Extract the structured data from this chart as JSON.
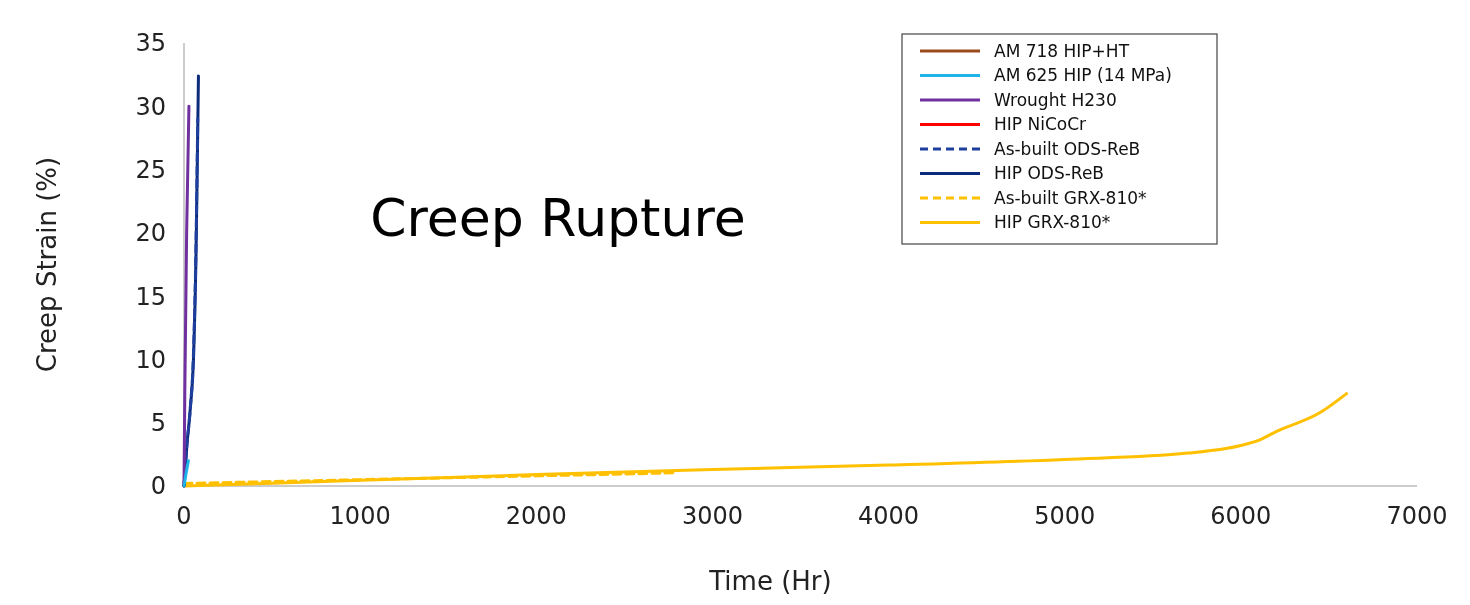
{
  "chart_data": {
    "type": "line",
    "title": "Creep Rupture",
    "xlabel": "Time (Hr)",
    "ylabel": "Creep Strain (%)",
    "xlim": [
      0,
      7000
    ],
    "ylim": [
      0,
      35
    ],
    "xticks": [
      0,
      1000,
      2000,
      3000,
      4000,
      5000,
      6000,
      7000
    ],
    "yticks": [
      0,
      5,
      10,
      15,
      20,
      25,
      30,
      35
    ],
    "grid": false,
    "legend": "top right",
    "marker": "none",
    "series": [
      {
        "name": "AM 718 HIP+HT",
        "color": "#9c4a1a",
        "values": [
          null
        ]
      },
      {
        "name": "AM 625 HIP (14 MPa)",
        "color": "#1fb4e8",
        "x": [
          0,
          12,
          25
        ],
        "values": [
          0,
          1,
          2
        ]
      },
      {
        "name": "Wrought H230",
        "color": "#7030a0",
        "x": [
          0,
          5,
          15,
          28
        ],
        "values": [
          0,
          8,
          20,
          30
        ]
      },
      {
        "name": "HIP NiCoCr",
        "color": "#ff0000",
        "values": [
          null
        ]
      },
      {
        "name": "As-built ODS-ReB",
        "color": "#1f3f9f",
        "line_style": "dashed",
        "x": [
          0,
          15,
          35,
          55,
          68,
          78
        ],
        "values": [
          0,
          3,
          6,
          11,
          19,
          29
        ]
      },
      {
        "name": "HIP ODS-ReB",
        "color": "#0c2a7a",
        "x": [
          0,
          17,
          35,
          55,
          68,
          76,
          82
        ],
        "values": [
          0,
          3.3,
          6,
          10.5,
          18,
          26,
          32.4
        ]
      },
      {
        "name": "As-built GRX-810*",
        "color": "#ffc000",
        "line_style": "dashed",
        "x": [
          0,
          500,
          1000,
          1500,
          2000,
          2500,
          2800
        ],
        "values": [
          0.2,
          0.35,
          0.5,
          0.65,
          0.8,
          0.95,
          1.05
        ]
      },
      {
        "name": "HIP GRX-810*",
        "color": "#ffc000",
        "x": [
          0,
          1000,
          2000,
          3000,
          4000,
          5000,
          5700,
          6000,
          6100,
          6200,
          6450,
          6600
        ],
        "values": [
          0,
          0.45,
          0.9,
          1.3,
          1.65,
          2.1,
          2.6,
          3.2,
          3.6,
          4.3,
          5.8,
          7.3
        ]
      }
    ]
  }
}
